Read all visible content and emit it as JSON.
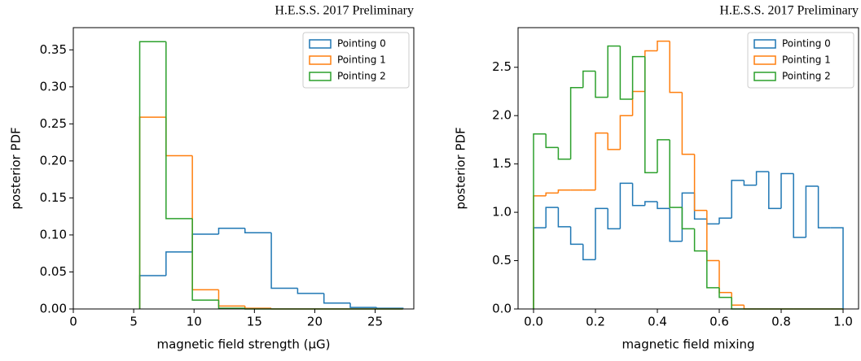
{
  "chart_data": [
    {
      "type": "histogram",
      "title": "H.E.S.S. 2017 Preliminary",
      "x_label": "magnetic field strength (μG)",
      "y_label": "posterior PDF",
      "bins": [
        5.5,
        7.68,
        9.86,
        12.04,
        14.22,
        16.4,
        18.58,
        20.76,
        22.94,
        25.12,
        27.3
      ],
      "series": [
        {
          "name": "Pointing 0",
          "color": "#1f77b4",
          "values": [
            0.045,
            0.077,
            0.101,
            0.109,
            0.103,
            0.028,
            0.021,
            0.008,
            0.002,
            0.001
          ]
        },
        {
          "name": "Pointing 1",
          "color": "#ff7f0e",
          "values": [
            0.259,
            0.207,
            0.026,
            0.004,
            0.001,
            0,
            0,
            0,
            0,
            0
          ]
        },
        {
          "name": "Pointing 2",
          "color": "#2ca02c",
          "values": [
            0.361,
            0.122,
            0.012,
            0.001,
            0,
            0,
            0,
            0,
            0,
            0
          ]
        }
      ],
      "xlim": [
        0,
        28.2
      ],
      "xticks": [
        0,
        5,
        10,
        15,
        20,
        25
      ],
      "ylim": [
        0,
        0.38
      ],
      "yticks": [
        {
          "value": 0,
          "label": "0.00"
        },
        0.05,
        {
          "value": 0.1,
          "label": "0.10"
        },
        0.15,
        {
          "value": 0.2,
          "label": "0.20"
        },
        0.25,
        {
          "value": 0.3,
          "label": "0.30"
        },
        0.35
      ],
      "legend": "upper right"
    },
    {
      "type": "histogram",
      "title": "H.E.S.S. 2017 Preliminary",
      "x_label": "magnetic field mixing",
      "y_label": "posterior PDF",
      "bins": [
        0,
        0.04,
        0.08,
        0.12,
        0.16,
        0.2,
        0.24,
        0.28,
        0.32,
        0.36,
        0.4,
        0.44,
        0.48,
        0.52,
        0.56,
        0.6,
        0.64,
        0.68,
        0.72,
        0.76,
        0.8,
        0.84,
        0.88,
        0.92,
        0.96,
        1
      ],
      "series": [
        {
          "name": "Pointing 0",
          "color": "#1f77b4",
          "values": [
            0.84,
            1.05,
            0.85,
            0.67,
            0.51,
            1.04,
            0.83,
            1.3,
            1.07,
            1.11,
            1.04,
            0.7,
            1.2,
            0.93,
            0.88,
            0.94,
            1.33,
            1.28,
            1.42,
            1.04,
            1.4,
            0.74,
            1.27,
            0.84,
            0.84
          ]
        },
        {
          "name": "Pointing 1",
          "color": "#ff7f0e",
          "values": [
            1.17,
            1.2,
            1.23,
            1.23,
            1.23,
            1.82,
            1.65,
            2,
            2.25,
            2.67,
            2.77,
            2.24,
            1.6,
            1.02,
            0.5,
            0.17,
            0.04,
            0,
            0,
            0,
            0,
            0,
            0,
            0,
            0
          ]
        },
        {
          "name": "Pointing 2",
          "color": "#2ca02c",
          "values": [
            1.81,
            1.67,
            1.55,
            2.29,
            2.46,
            2.19,
            2.72,
            2.17,
            2.61,
            1.41,
            1.75,
            1.05,
            0.83,
            0.6,
            0.22,
            0.12,
            0,
            0,
            0,
            0,
            0,
            0,
            0,
            0,
            0
          ]
        }
      ],
      "xlim": [
        -0.05,
        1.05
      ],
      "xticks": [
        {
          "value": 0,
          "label": "0.0"
        },
        0.2,
        0.4,
        0.6,
        0.8,
        {
          "value": 1,
          "label": "1.0"
        }
      ],
      "ylim": [
        0,
        2.91
      ],
      "yticks": [
        {
          "value": 0,
          "label": "0.0"
        },
        0.5,
        {
          "value": 1,
          "label": "1.0"
        },
        1.5,
        {
          "value": 2,
          "label": "2.0"
        },
        2.5
      ],
      "legend": "upper right"
    }
  ]
}
